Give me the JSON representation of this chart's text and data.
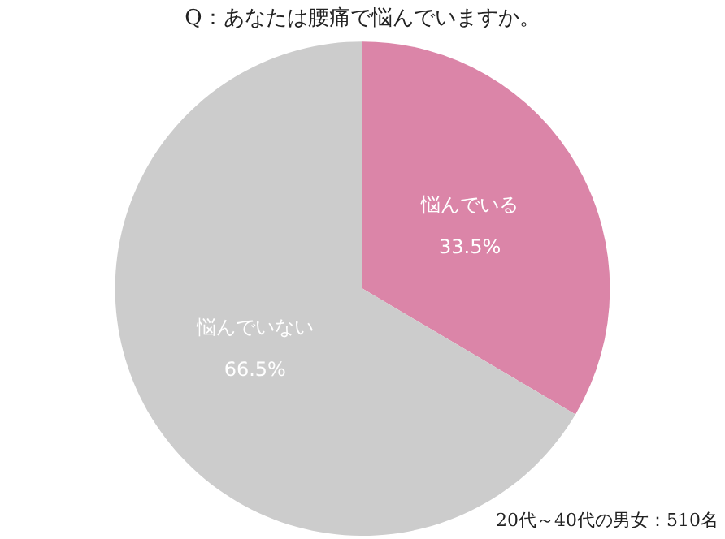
{
  "chart_data": {
    "type": "pie",
    "title": "Q：あなたは腰痛で悩んでいますか。",
    "categories": [
      "悩んでいる",
      "悩んでいない"
    ],
    "values": [
      33.5,
      66.5
    ],
    "colors": [
      "#db85a8",
      "#cccccc"
    ],
    "value_labels": [
      "33.5%",
      "66.5%"
    ],
    "legend": false,
    "annotations": [
      "20代～40代の男女：510名"
    ]
  }
}
